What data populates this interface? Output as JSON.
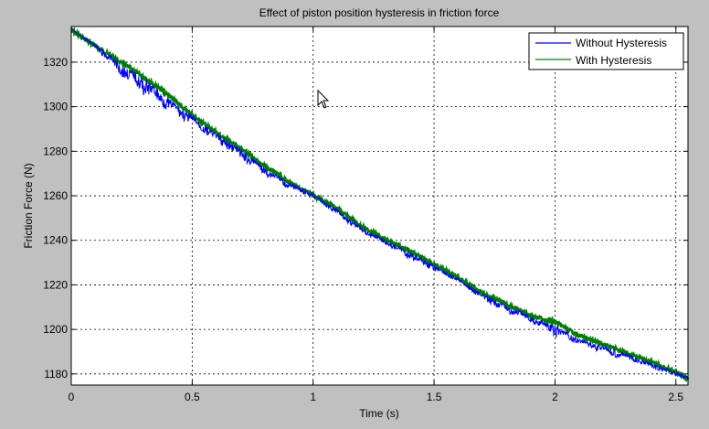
{
  "chart_data": {
    "type": "line",
    "title": "Effect of piston position hysteresis in friction force",
    "xlabel": "Time (s)",
    "ylabel": "Friction Force (N)",
    "xlim": [
      0,
      2.55
    ],
    "ylim": [
      1175,
      1336
    ],
    "x_ticks": [
      0,
      0.5,
      1,
      1.5,
      2,
      2.5
    ],
    "x_tick_labels": [
      "0",
      "0.5",
      "1",
      "1.5",
      "2",
      "2.5"
    ],
    "y_ticks": [
      1180,
      1200,
      1220,
      1240,
      1260,
      1280,
      1300,
      1320
    ],
    "y_tick_labels": [
      "1180",
      "1200",
      "1220",
      "1240",
      "1260",
      "1280",
      "1300",
      "1320"
    ],
    "grid": true,
    "legend_position": "top-right",
    "series": [
      {
        "name": "Without Hysteresis",
        "color": "#0000ff",
        "trend_x": [
          0,
          0.1,
          0.2,
          0.3,
          0.4,
          0.5,
          0.6,
          0.7,
          0.8,
          0.9,
          1.0,
          1.1,
          1.2,
          1.3,
          1.4,
          1.5,
          1.6,
          1.7,
          1.8,
          1.9,
          2.0,
          2.1,
          2.2,
          2.3,
          2.4,
          2.55
        ],
        "trend_y": [
          1335,
          1328,
          1320,
          1313,
          1304,
          1296,
          1288,
          1281,
          1273,
          1266,
          1261,
          1254,
          1246,
          1240,
          1235,
          1229,
          1223,
          1216,
          1211,
          1206,
          1202,
          1196,
          1193,
          1189,
          1185,
          1179
        ],
        "dip_depth": [
          0,
          2,
          6,
          8,
          6,
          5,
          4,
          5,
          4,
          3,
          2,
          3,
          3,
          2,
          4,
          3,
          2,
          3,
          4,
          3,
          6,
          3,
          4,
          3,
          3,
          2
        ]
      },
      {
        "name": "With Hysteresis",
        "color": "#008000",
        "trend_x": [
          0,
          0.1,
          0.2,
          0.3,
          0.4,
          0.5,
          0.6,
          0.7,
          0.8,
          0.9,
          1.0,
          1.1,
          1.2,
          1.3,
          1.4,
          1.5,
          1.6,
          1.7,
          1.8,
          1.9,
          2.0,
          2.1,
          2.2,
          2.3,
          2.4,
          2.55
        ],
        "trend_y": [
          1335,
          1328,
          1321,
          1314,
          1306,
          1297,
          1289,
          1282,
          1274,
          1267,
          1261,
          1255,
          1247,
          1241,
          1236,
          1230,
          1224,
          1217,
          1212,
          1207,
          1204,
          1198,
          1194,
          1190,
          1186,
          1179
        ]
      }
    ]
  }
}
